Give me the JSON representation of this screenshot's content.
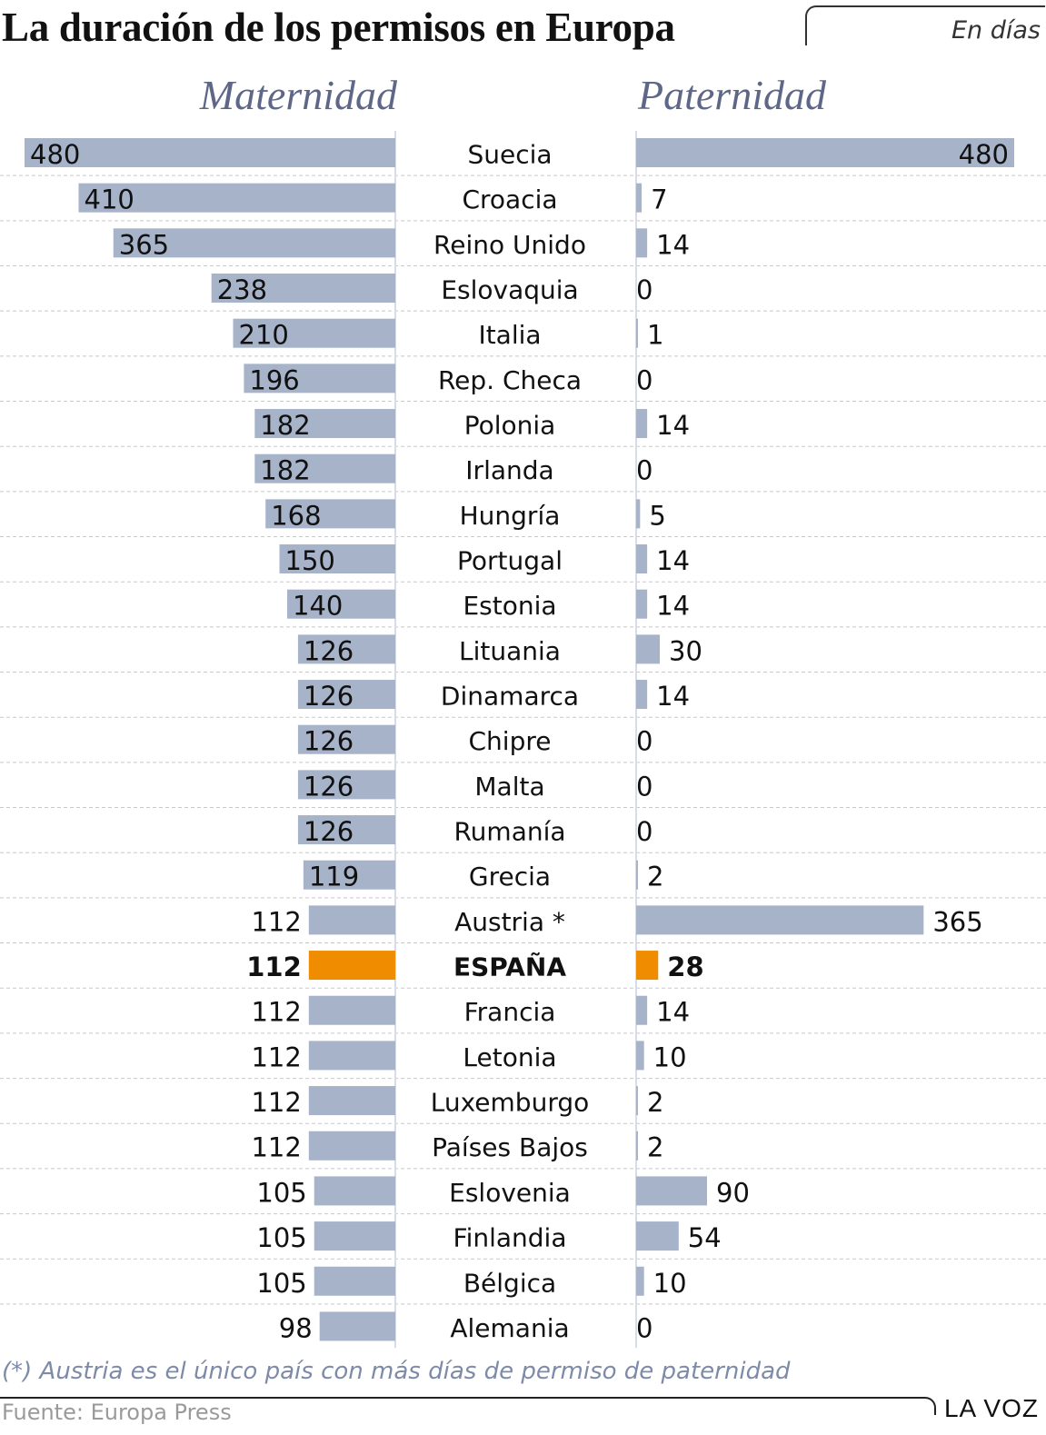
{
  "header": {
    "title": "La duración de los permisos en Europa",
    "unit_note": "En días"
  },
  "footer": {
    "footnote": "(*) Austria es el único país con más días de permiso de paternidad",
    "source": "Fuente: Europa Press",
    "brand": "LA VOZ"
  },
  "colors": {
    "bar": "#a6b3c9",
    "highlight": "#f08c00",
    "grid": "#c8c8c8",
    "axis": "#d7dde8",
    "text": "#111111",
    "heading": "#5e6787"
  },
  "chart_data": {
    "type": "bar",
    "orientation": "horizontal-butterfly",
    "title": "La duración de los permisos en Europa",
    "unit": "En días",
    "series": [
      {
        "name": "Maternidad",
        "side": "left"
      },
      {
        "name": "Paternidad",
        "side": "right"
      }
    ],
    "xlim": [
      0,
      480
    ],
    "highlight_category": "ESPAÑA",
    "rows": [
      {
        "country": "Suecia",
        "maternidad": 480,
        "paternidad": 480
      },
      {
        "country": "Croacia",
        "maternidad": 410,
        "paternidad": 7
      },
      {
        "country": "Reino Unido",
        "maternidad": 365,
        "paternidad": 14
      },
      {
        "country": "Eslovaquia",
        "maternidad": 238,
        "paternidad": 0
      },
      {
        "country": "Italia",
        "maternidad": 210,
        "paternidad": 1
      },
      {
        "country": "Rep. Checa",
        "maternidad": 196,
        "paternidad": 0
      },
      {
        "country": "Polonia",
        "maternidad": 182,
        "paternidad": 14
      },
      {
        "country": "Irlanda",
        "maternidad": 182,
        "paternidad": 0
      },
      {
        "country": "Hungría",
        "maternidad": 168,
        "paternidad": 5
      },
      {
        "country": "Portugal",
        "maternidad": 150,
        "paternidad": 14
      },
      {
        "country": "Estonia",
        "maternidad": 140,
        "paternidad": 14
      },
      {
        "country": "Lituania",
        "maternidad": 126,
        "paternidad": 30
      },
      {
        "country": "Dinamarca",
        "maternidad": 126,
        "paternidad": 14
      },
      {
        "country": "Chipre",
        "maternidad": 126,
        "paternidad": 0
      },
      {
        "country": "Malta",
        "maternidad": 126,
        "paternidad": 0
      },
      {
        "country": "Rumanía",
        "maternidad": 126,
        "paternidad": 0
      },
      {
        "country": "Grecia",
        "maternidad": 119,
        "paternidad": 2
      },
      {
        "country": "Austria *",
        "maternidad": 112,
        "paternidad": 365
      },
      {
        "country": "ESPAÑA",
        "maternidad": 112,
        "paternidad": 28
      },
      {
        "country": "Francia",
        "maternidad": 112,
        "paternidad": 14
      },
      {
        "country": "Letonia",
        "maternidad": 112,
        "paternidad": 10
      },
      {
        "country": "Luxemburgo",
        "maternidad": 112,
        "paternidad": 2
      },
      {
        "country": "Países Bajos",
        "maternidad": 112,
        "paternidad": 2
      },
      {
        "country": "Eslovenia",
        "maternidad": 105,
        "paternidad": 90
      },
      {
        "country": "Finlandia",
        "maternidad": 105,
        "paternidad": 54
      },
      {
        "country": "Bélgica",
        "maternidad": 105,
        "paternidad": 10
      },
      {
        "country": "Alemania",
        "maternidad": 98,
        "paternidad": 0
      }
    ]
  }
}
